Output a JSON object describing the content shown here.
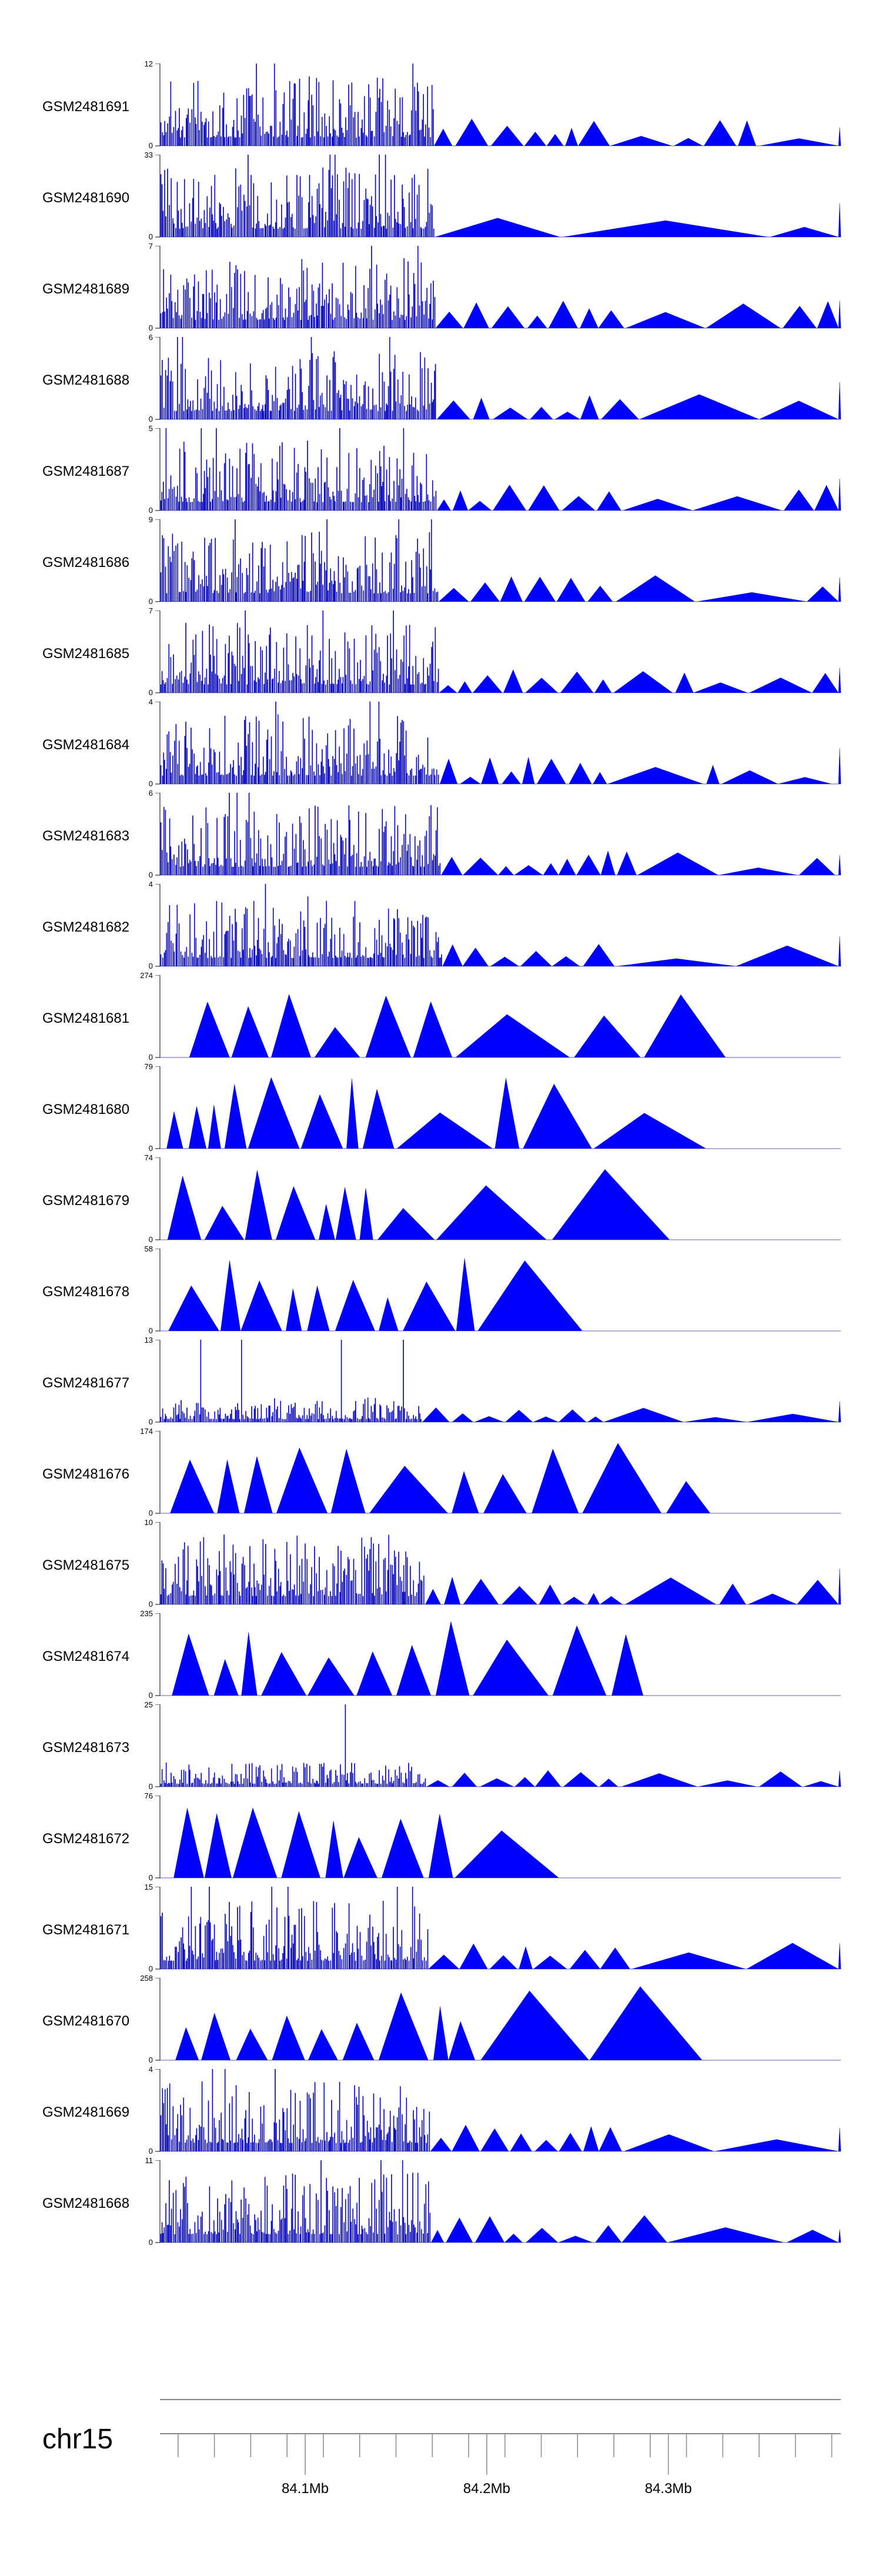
{
  "chart_data": {
    "type": "area",
    "chromosome": "chr15",
    "x_range_mb": [
      84.02,
      84.395
    ],
    "x_ticks": [
      {
        "value": 84.1,
        "label": "84.1Mb"
      },
      {
        "value": 84.2,
        "label": "84.2Mb"
      },
      {
        "value": 84.3,
        "label": "84.3Mb"
      }
    ],
    "color": "#0000ff",
    "tracks": [
      {
        "name": "GSM2481691",
        "ymax": 12,
        "ymin": 0,
        "profile": "dense_right"
      },
      {
        "name": "GSM2481690",
        "ymax": 33,
        "ymin": 0,
        "profile": "dense_right_wide"
      },
      {
        "name": "GSM2481689",
        "ymax": 7,
        "ymin": 0,
        "profile": "dense_right"
      },
      {
        "name": "GSM2481688",
        "ymax": 6,
        "ymin": 0,
        "profile": "dense_right"
      },
      {
        "name": "GSM2481687",
        "ymax": 5,
        "ymin": 0,
        "profile": "dense_right"
      },
      {
        "name": "GSM2481686",
        "ymax": 9,
        "ymin": 0,
        "profile": "dense_right"
      },
      {
        "name": "GSM2481685",
        "ymax": 7,
        "ymin": 0,
        "profile": "dense_right"
      },
      {
        "name": "GSM2481684",
        "ymax": 4,
        "ymin": 0,
        "profile": "dense_right"
      },
      {
        "name": "GSM2481683",
        "ymax": 6,
        "ymin": 0,
        "profile": "dense_right"
      },
      {
        "name": "GSM2481682",
        "ymax": 4,
        "ymin": 0,
        "profile": "dense_right"
      },
      {
        "name": "GSM2481681",
        "ymax": 274,
        "ymin": 0,
        "profile": "sparse"
      },
      {
        "name": "GSM2481680",
        "ymax": 79,
        "ymin": 0,
        "profile": "sparse"
      },
      {
        "name": "GSM2481679",
        "ymax": 74,
        "ymin": 0,
        "profile": "sparse"
      },
      {
        "name": "GSM2481678",
        "ymax": 58,
        "ymin": 0,
        "profile": "sparse"
      },
      {
        "name": "GSM2481677",
        "ymax": 13,
        "ymin": 0,
        "profile": "dense_low"
      },
      {
        "name": "GSM2481676",
        "ymax": 174,
        "ymin": 0,
        "profile": "sparse"
      },
      {
        "name": "GSM2481675",
        "ymax": 10,
        "ymin": 0,
        "profile": "dense_right"
      },
      {
        "name": "GSM2481674",
        "ymax": 235,
        "ymin": 0,
        "profile": "sparse"
      },
      {
        "name": "GSM2481673",
        "ymax": 25,
        "ymin": 0,
        "profile": "dense_low"
      },
      {
        "name": "GSM2481672",
        "ymax": 76,
        "ymin": 0,
        "profile": "sparse"
      },
      {
        "name": "GSM2481671",
        "ymax": 15,
        "ymin": 0,
        "profile": "dense_right"
      },
      {
        "name": "GSM2481670",
        "ymax": 258,
        "ymin": 0,
        "profile": "sparse"
      },
      {
        "name": "GSM2481669",
        "ymax": 4,
        "ymin": 0,
        "profile": "dense_right"
      },
      {
        "name": "GSM2481668",
        "ymax": 11,
        "ymin": 0,
        "profile": "dense_right"
      }
    ]
  }
}
